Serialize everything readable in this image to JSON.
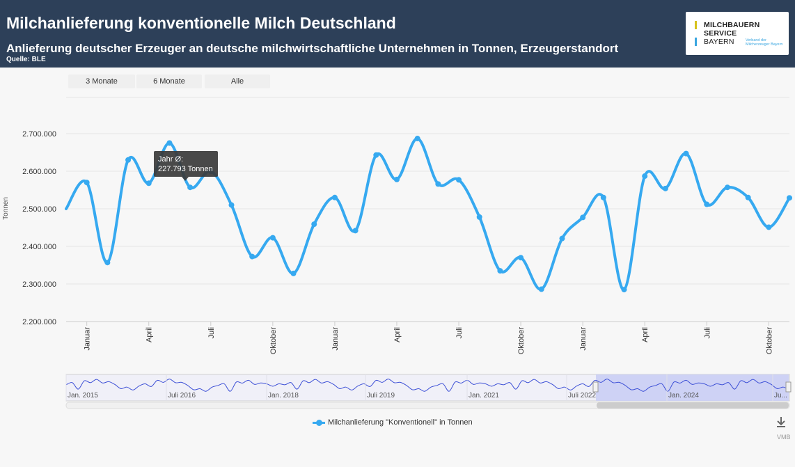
{
  "header": {
    "title": "Milchanlieferung konventionelle Milch Deutschland",
    "subtitle": "Anlieferung deutscher Erzeuger an deutsche milchwirtschaftliche Unternehmen in Tonnen, Erzeugerstandort",
    "source": "Quelle: BLE"
  },
  "logo": {
    "line1": "MILCHBAUERN",
    "line2": "SERVICE",
    "line3": "BAYERN",
    "tagline": "Verband der Milcherzeuger Bayern"
  },
  "range_buttons": [
    "3 Monate",
    "6 Monate",
    "Alle"
  ],
  "tooltip": {
    "line1": "Jahr Ø:",
    "line2": "227.793 Tonnen"
  },
  "legend_label": "Milchanlieferung \"Konventionell\" in Tonnen",
  "credit": "VMB",
  "colors": {
    "series": "#36a9f0",
    "header": "#2d4059",
    "navigator": "#3c4fd6"
  },
  "chart_data": {
    "type": "line",
    "ylabel": "Tonnen",
    "ylim": [
      2200000,
      2700000
    ],
    "y_ticks": [
      "2.200.000",
      "2.300.000",
      "2.400.000",
      "2.500.000",
      "2.600.000",
      "2.700.000"
    ],
    "x_tick_labels": [
      "Januar",
      "April",
      "Juli",
      "Oktober",
      "Januar",
      "April",
      "Juli",
      "Oktober",
      "Januar",
      "April",
      "Juli",
      "Oktober"
    ],
    "series": [
      {
        "name": "Milchanlieferung \"Konventionell\" in Tonnen",
        "points": [
          {
            "x": "2021-12",
            "y": 2500000
          },
          {
            "x": "2022-01",
            "y": 2570000
          },
          {
            "x": "2022-02",
            "y": 2357000
          },
          {
            "x": "2022-03",
            "y": 2630000
          },
          {
            "x": "2022-04",
            "y": 2568000
          },
          {
            "x": "2022-05",
            "y": 2675000
          },
          {
            "x": "2022-06",
            "y": 2557000
          },
          {
            "x": "2022-07",
            "y": 2600000
          },
          {
            "x": "2022-08",
            "y": 2510000
          },
          {
            "x": "2022-09",
            "y": 2373000
          },
          {
            "x": "2022-10",
            "y": 2423000
          },
          {
            "x": "2022-11",
            "y": 2328000
          },
          {
            "x": "2022-12",
            "y": 2459000
          },
          {
            "x": "2023-01",
            "y": 2530000
          },
          {
            "x": "2023-02",
            "y": 2442000
          },
          {
            "x": "2023-03",
            "y": 2643000
          },
          {
            "x": "2023-04",
            "y": 2578000
          },
          {
            "x": "2023-05",
            "y": 2687000
          },
          {
            "x": "2023-06",
            "y": 2566000
          },
          {
            "x": "2023-07",
            "y": 2577000
          },
          {
            "x": "2023-08",
            "y": 2478000
          },
          {
            "x": "2023-09",
            "y": 2335000
          },
          {
            "x": "2023-10",
            "y": 2370000
          },
          {
            "x": "2023-11",
            "y": 2286000
          },
          {
            "x": "2023-12",
            "y": 2421000
          },
          {
            "x": "2024-01",
            "y": 2477000
          },
          {
            "x": "2024-02",
            "y": 2530000
          },
          {
            "x": "2024-03",
            "y": 2285000
          },
          {
            "x": "2024-04",
            "y": 2587000
          },
          {
            "x": "2024-05",
            "y": 2554000
          },
          {
            "x": "2024-06",
            "y": 2647000
          },
          {
            "x": "2024-07",
            "y": 2512000
          },
          {
            "x": "2024-08",
            "y": 2557000
          },
          {
            "x": "2024-09",
            "y": 2530000
          },
          {
            "x": "2024-10",
            "y": 2451000
          },
          {
            "x": "2024-11",
            "y": 2529000
          }
        ]
      }
    ],
    "navigator": {
      "labels": [
        "Jan. 2015",
        "Juli 2016",
        "Jan. 2018",
        "Juli 2019",
        "Jan. 2021",
        "Juli 2022",
        "Jan. 2024",
        "Ju..."
      ]
    },
    "grid": true,
    "legend_position": "bottom-center"
  }
}
